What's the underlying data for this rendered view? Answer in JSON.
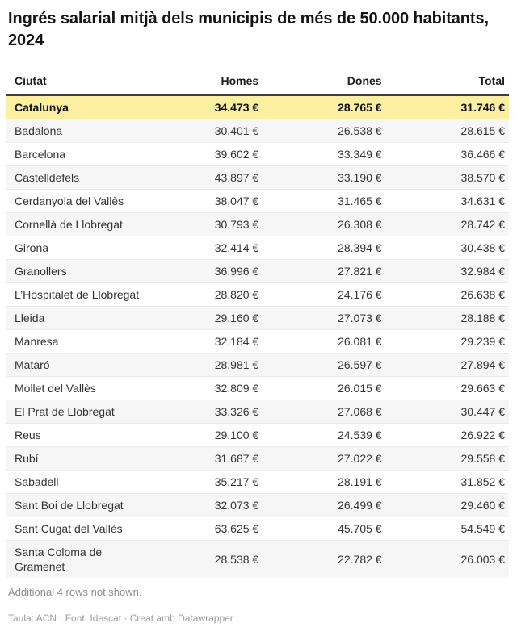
{
  "header": {
    "title": "Ingrés salarial mitjà dels municipis de més de 50.000 habitants, 2024"
  },
  "chart_data": {
    "type": "table",
    "columns": [
      "Ciutat",
      "Homes",
      "Dones",
      "Total"
    ],
    "rows": [
      {
        "ciutat": "Catalunya",
        "homes": "34.473 €",
        "dones": "28.765 €",
        "total": "31.746 €",
        "highlight": true
      },
      {
        "ciutat": "Badalona",
        "homes": "30.401 €",
        "dones": "26.538 €",
        "total": "28.615 €"
      },
      {
        "ciutat": "Barcelona",
        "homes": "39.602 €",
        "dones": "33.349 €",
        "total": "36.466 €"
      },
      {
        "ciutat": "Castelldefels",
        "homes": "43.897 €",
        "dones": "33.190 €",
        "total": "38.570 €"
      },
      {
        "ciutat": "Cerdanyola del Vallès",
        "homes": "38.047 €",
        "dones": "31.465 €",
        "total": "34.631 €"
      },
      {
        "ciutat": "Cornellà de Llobregat",
        "homes": "30.793 €",
        "dones": "26.308 €",
        "total": "28.742 €"
      },
      {
        "ciutat": "Girona",
        "homes": "32.414 €",
        "dones": "28.394 €",
        "total": "30.438 €"
      },
      {
        "ciutat": "Granollers",
        "homes": "36.996 €",
        "dones": "27.821 €",
        "total": "32.984 €"
      },
      {
        "ciutat": "L’Hospitalet de Llobregat",
        "homes": "28.820 €",
        "dones": "24.176 €",
        "total": "26.638 €"
      },
      {
        "ciutat": "Lleida",
        "homes": "29.160 €",
        "dones": "27.073 €",
        "total": "28.188 €"
      },
      {
        "ciutat": "Manresa",
        "homes": "32.184 €",
        "dones": "26.081 €",
        "total": "29.239 €"
      },
      {
        "ciutat": "Mataró",
        "homes": "28.981 €",
        "dones": "26.597 €",
        "total": "27.894 €"
      },
      {
        "ciutat": "Mollet del Vallès",
        "homes": "32.809 €",
        "dones": "26.015 €",
        "total": "29.663 €"
      },
      {
        "ciutat": "El Prat de Llobregat",
        "homes": "33.326 €",
        "dones": "27.068 €",
        "total": "30.447 €"
      },
      {
        "ciutat": "Reus",
        "homes": "29.100 €",
        "dones": "24.539 €",
        "total": "26.922 €"
      },
      {
        "ciutat": "Rubí",
        "homes": "31.687 €",
        "dones": "27.022 €",
        "total": "29.558 €"
      },
      {
        "ciutat": "Sabadell",
        "homes": "35.217 €",
        "dones": "28.191 €",
        "total": "31.852 €"
      },
      {
        "ciutat": "Sant Boi de Llobregat",
        "homes": "32.073 €",
        "dones": "26.499 €",
        "total": "29.460 €"
      },
      {
        "ciutat": "Sant Cugat del Vallès",
        "homes": "63.625 €",
        "dones": "45.705 €",
        "total": "54.549 €"
      },
      {
        "ciutat": "Santa Coloma de Gramenet",
        "homes": "28.538 €",
        "dones": "22.782 €",
        "total": "26.003 €"
      }
    ],
    "layout_hints": {
      "highlight_row": "Catalunya",
      "striped": true,
      "number_alignment": "right"
    }
  },
  "notes": {
    "rows_not_shown": "Additional 4 rows not shown."
  },
  "footer": {
    "credit": "Taula: ACN · Font: Idescat · Creat amb Datawrapper"
  },
  "colors": {
    "highlight": "#fcefa1",
    "stripe": "#f6f6f6",
    "header_rule": "#3e3e3e",
    "muted": "#8c8c8c",
    "muted2": "#9c9c9c"
  }
}
